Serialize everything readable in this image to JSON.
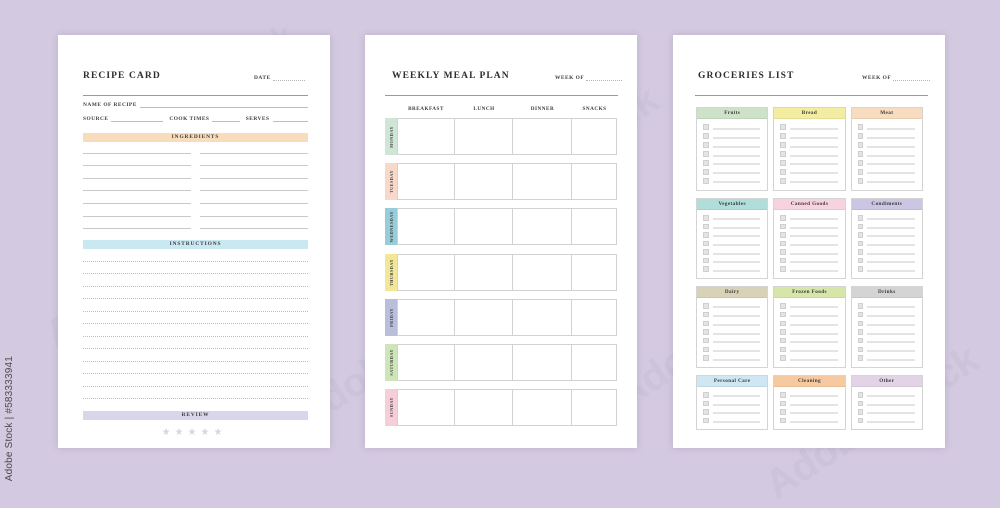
{
  "stock_watermark": {
    "text": "Adobe Stock",
    "attribution": "Adobe Stock | #583333941"
  },
  "canvas_bg": "#d3c9e0",
  "recipe_card": {
    "title": "RECIPE CARD",
    "date_label": "DATE",
    "name_label": "NAME OF RECIPE",
    "source_label": "SOURCE",
    "cook_times_label": "COOK TIMES",
    "serves_label": "SERVES",
    "sections": [
      {
        "label": "INGREDIENTS",
        "color": "#f8dcbb"
      },
      {
        "label": "INSTRUCTIONS",
        "color": "#c9e8f2"
      },
      {
        "label": "REVIEW",
        "color": "#d9d6ec"
      }
    ],
    "ingredient_columns": 2,
    "ingredient_lines_per_column": 8,
    "instruction_lines": 13,
    "stars": 5,
    "star_icon": "★"
  },
  "meal_plan": {
    "title": "WEEKLY MEAL PLAN",
    "week_of_label": "WEEK OF",
    "columns": [
      "BREAKFAST",
      "LUNCH",
      "DINNER",
      "SNACKS"
    ],
    "days": [
      {
        "label": "MONDAY",
        "color": "#cfe6d7"
      },
      {
        "label": "TUESDAY",
        "color": "#f8d8c9"
      },
      {
        "label": "WEDNESDAY",
        "color": "#96cdd9"
      },
      {
        "label": "THURSDAY",
        "color": "#f2e795"
      },
      {
        "label": "FRIDAY",
        "color": "#b9bedc"
      },
      {
        "label": "SATURDAY",
        "color": "#cee4b9"
      },
      {
        "label": "SUNDAY",
        "color": "#f7cdda"
      }
    ]
  },
  "groceries_list": {
    "title": "GROCERIES LIST",
    "week_of_label": "WEEK OF",
    "categories": [
      {
        "label": "Fruits",
        "color": "#cde2c9",
        "items": 7
      },
      {
        "label": "Bread",
        "color": "#f2eda0",
        "items": 7
      },
      {
        "label": "Meat",
        "color": "#f7dcbf",
        "items": 7
      },
      {
        "label": "Vegetables",
        "color": "#afdedb",
        "items": 7
      },
      {
        "label": "Canned Goods",
        "color": "#f7d3df",
        "items": 7
      },
      {
        "label": "Condiments",
        "color": "#ccc5e3",
        "items": 7
      },
      {
        "label": "Dairy",
        "color": "#d8d2b8",
        "items": 7
      },
      {
        "label": "Frozen Foods",
        "color": "#d5e6a8",
        "items": 7
      },
      {
        "label": "Drinks",
        "color": "#d4d4d4",
        "items": 7
      },
      {
        "label": "Personal Care",
        "color": "#cfe6f3",
        "items": 4
      },
      {
        "label": "Cleaning",
        "color": "#f7c9a0",
        "items": 4
      },
      {
        "label": "Other",
        "color": "#e2d3e6",
        "items": 4
      }
    ]
  }
}
